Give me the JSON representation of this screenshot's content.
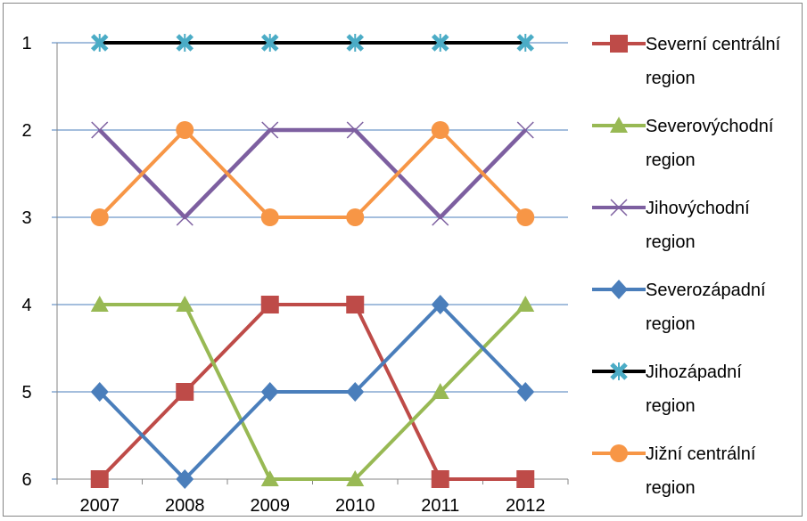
{
  "chart_data": {
    "type": "line",
    "title": "",
    "xlabel": "",
    "ylabel": "",
    "categories": [
      "2007",
      "2008",
      "2009",
      "2010",
      "2011",
      "2012"
    ],
    "y_ticks": [
      "1",
      "2",
      "3",
      "4",
      "5",
      "6"
    ],
    "ylim": [
      1,
      6
    ],
    "y_reversed": true,
    "grid": "horizontal",
    "legend_position": "right",
    "series": [
      {
        "name": "Severní centrální region",
        "name_lines": [
          "Severní centrální",
          "region"
        ],
        "values": [
          6,
          5,
          4,
          4,
          6,
          6
        ],
        "color": "#BE4B48",
        "marker": "square"
      },
      {
        "name": "Severovýchodní region",
        "name_lines": [
          "Severovýchodní",
          "region"
        ],
        "values": [
          4,
          4,
          6,
          6,
          5,
          4
        ],
        "color": "#98B954",
        "marker": "triangle"
      },
      {
        "name": "Jihovýchodní region",
        "name_lines": [
          "Jihovýchodní",
          "region"
        ],
        "values": [
          2,
          3,
          2,
          2,
          3,
          2
        ],
        "color": "#7D5FA0",
        "marker": "x"
      },
      {
        "name": "Severozápadní region",
        "name_lines": [
          "Severozápadní",
          "region"
        ],
        "values": [
          5,
          6,
          5,
          5,
          4,
          5
        ],
        "color": "#4A7EBB",
        "marker": "diamond"
      },
      {
        "name": "Jihozápadní region",
        "name_lines": [
          "Jihozápadní",
          "region"
        ],
        "values": [
          1,
          1,
          1,
          1,
          1,
          1
        ],
        "color": "#000000",
        "marker_color": "#4BACC6",
        "marker": "star"
      },
      {
        "name": "Jižní centrální region",
        "name_lines": [
          "Jižní centrální",
          "region"
        ],
        "values": [
          3,
          2,
          3,
          3,
          2,
          3
        ],
        "color": "#F79646",
        "marker": "circle"
      }
    ]
  }
}
